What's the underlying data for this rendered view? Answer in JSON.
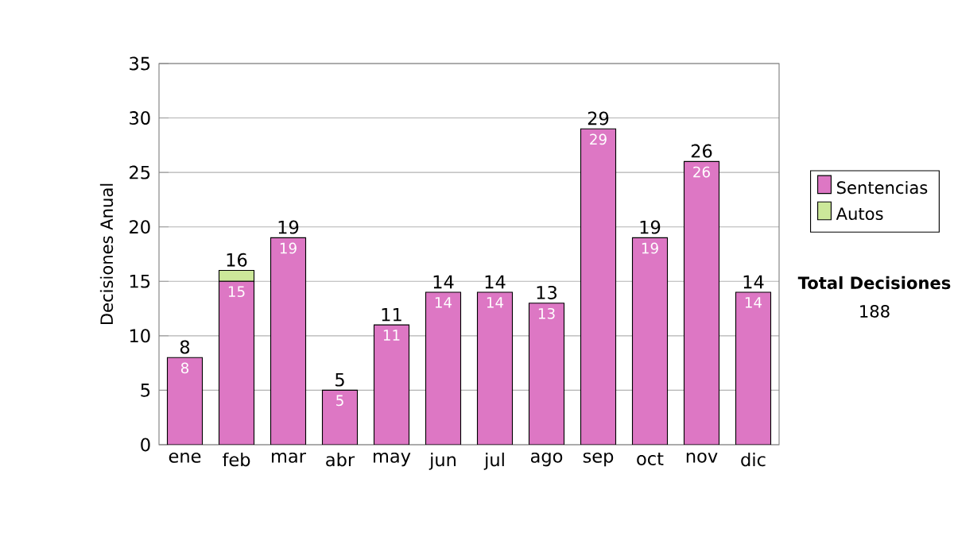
{
  "chart_data": {
    "type": "bar",
    "stacked": true,
    "ylabel": "Decisiones Anual",
    "categories": [
      "ene",
      "feb",
      "mar",
      "abr",
      "may",
      "jun",
      "jul",
      "ago",
      "sep",
      "oct",
      "nov",
      "dic"
    ],
    "series": [
      {
        "name": "Sentencias",
        "color": "#dd77c4",
        "values": [
          8,
          15,
          19,
          5,
          11,
          14,
          14,
          13,
          29,
          19,
          26,
          14
        ],
        "value_labels": [
          "8",
          "15",
          "19",
          "5",
          "11",
          "14",
          "14",
          "13",
          "29",
          "19",
          "26",
          "14"
        ]
      },
      {
        "name": "Autos",
        "color": "#cce89a",
        "values": [
          0,
          1,
          0,
          0,
          0,
          0,
          0,
          0,
          0,
          0,
          0,
          0
        ]
      }
    ],
    "totals": [
      "8",
      "16",
      "19",
      "5",
      "11",
      "14",
      "14",
      "13",
      "29",
      "19",
      "26",
      "14"
    ],
    "ylim": [
      0,
      35
    ],
    "yticks": [
      0,
      5,
      10,
      15,
      20,
      25,
      30,
      35
    ],
    "grid": "y",
    "legend": "right",
    "annotations": [
      "Total Decisiones",
      "188"
    ]
  }
}
